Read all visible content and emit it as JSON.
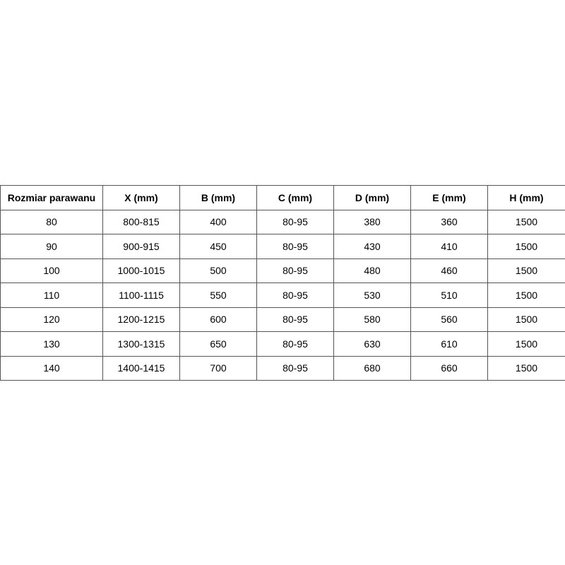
{
  "table": {
    "headers": [
      "Rozmiar parawanu",
      "X (mm)",
      "B (mm)",
      "C (mm)",
      "D (mm)",
      "E (mm)",
      "H (mm)"
    ],
    "rows": [
      [
        "80",
        "800-815",
        "400",
        "80-95",
        "380",
        "360",
        "1500"
      ],
      [
        "90",
        "900-915",
        "450",
        "80-95",
        "430",
        "410",
        "1500"
      ],
      [
        "100",
        "1000-1015",
        "500",
        "80-95",
        "480",
        "460",
        "1500"
      ],
      [
        "110",
        "1100-1115",
        "550",
        "80-95",
        "530",
        "510",
        "1500"
      ],
      [
        "120",
        "1200-1215",
        "600",
        "80-95",
        "580",
        "560",
        "1500"
      ],
      [
        "130",
        "1300-1315",
        "650",
        "80-95",
        "630",
        "610",
        "1500"
      ],
      [
        "140",
        "1400-1415",
        "700",
        "80-95",
        "680",
        "660",
        "1500"
      ]
    ]
  }
}
